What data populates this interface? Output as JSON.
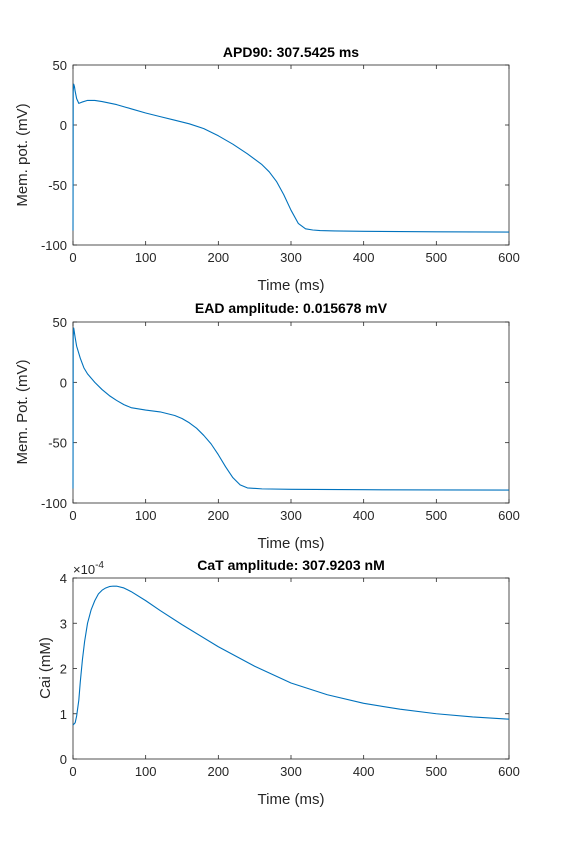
{
  "chart_data": [
    {
      "type": "line",
      "title": "APD90: 307.5425 ms",
      "xlabel": "Time (ms)",
      "ylabel": "Mem. pot. (mV)",
      "xlim": [
        0,
        600
      ],
      "ylim": [
        -100,
        50
      ],
      "xticks": [
        0,
        100,
        200,
        300,
        400,
        500,
        600
      ],
      "yticks": [
        -100,
        -50,
        0,
        50
      ],
      "xtick_labels": [
        "0",
        "100",
        "200",
        "300",
        "400",
        "500",
        "600"
      ],
      "ytick_labels": [
        "-100",
        "-50",
        "0",
        "50"
      ],
      "exponent_label": "",
      "exponent_power": "",
      "grid": false,
      "line_color": "#0072BD",
      "series": [
        {
          "x": [
            0,
            0.3,
            1,
            2,
            3,
            5,
            8,
            12,
            20,
            30,
            40,
            60,
            80,
            100,
            120,
            140,
            160,
            180,
            200,
            220,
            240,
            260,
            270,
            280,
            290,
            300,
            310,
            320,
            330,
            340,
            360,
            400,
            450,
            500,
            550,
            600
          ],
          "y": [
            -88,
            28,
            34,
            32,
            28,
            22,
            18,
            19,
            20.5,
            20.5,
            19.5,
            17,
            13.5,
            10,
            7,
            4,
            1,
            -3,
            -9,
            -16,
            -24,
            -33,
            -39,
            -47,
            -58,
            -71,
            -82,
            -86.5,
            -87.5,
            -88,
            -88.3,
            -88.6,
            -88.8,
            -89,
            -89.1,
            -89.2
          ]
        }
      ]
    },
    {
      "type": "line",
      "title": "EAD amplitude: 0.015678 mV",
      "xlabel": "Time (ms)",
      "ylabel": "Mem. Pot. (mV)",
      "xlim": [
        0,
        600
      ],
      "ylim": [
        -100,
        50
      ],
      "xticks": [
        0,
        100,
        200,
        300,
        400,
        500,
        600
      ],
      "yticks": [
        -100,
        -50,
        0,
        50
      ],
      "xtick_labels": [
        "0",
        "100",
        "200",
        "300",
        "400",
        "500",
        "600"
      ],
      "ytick_labels": [
        "-100",
        "-50",
        "0",
        "50"
      ],
      "exponent_label": "",
      "exponent_power": "",
      "grid": false,
      "line_color": "#0072BD",
      "series": [
        {
          "x": [
            0,
            0.3,
            1,
            3,
            5,
            10,
            15,
            20,
            30,
            40,
            50,
            60,
            70,
            80,
            100,
            120,
            140,
            150,
            160,
            170,
            180,
            190,
            200,
            210,
            220,
            230,
            240,
            260,
            300,
            400,
            500,
            600
          ],
          "y": [
            -88,
            38,
            45,
            37,
            30,
            20,
            12,
            7,
            0,
            -6,
            -11,
            -15,
            -18.5,
            -21,
            -23,
            -24.5,
            -27.5,
            -30,
            -33.5,
            -38,
            -44,
            -51,
            -60,
            -70,
            -79,
            -85,
            -87.5,
            -88.3,
            -88.7,
            -89,
            -89.2,
            -89.3
          ]
        }
      ]
    },
    {
      "type": "line",
      "title": "CaT amplitude: 307.9203 nM",
      "xlabel": "Time (ms)",
      "ylabel": "Cai (mM)",
      "xlim": [
        0,
        600
      ],
      "ylim": [
        0,
        4
      ],
      "xticks": [
        0,
        100,
        200,
        300,
        400,
        500,
        600
      ],
      "yticks": [
        0,
        1,
        2,
        3,
        4
      ],
      "xtick_labels": [
        "0",
        "100",
        "200",
        "300",
        "400",
        "500",
        "600"
      ],
      "ytick_labels": [
        "0",
        "1",
        "2",
        "3",
        "4"
      ],
      "exponent_label": "×10",
      "exponent_power": "-4",
      "grid": false,
      "line_color": "#0072BD",
      "series": [
        {
          "x": [
            0,
            3,
            5,
            8,
            10,
            13,
            16,
            20,
            25,
            30,
            35,
            40,
            45,
            50,
            55,
            60,
            70,
            80,
            100,
            120,
            150,
            200,
            250,
            300,
            350,
            400,
            450,
            500,
            550,
            600
          ],
          "y": [
            0.75,
            0.8,
            0.95,
            1.3,
            1.7,
            2.2,
            2.6,
            3.0,
            3.3,
            3.5,
            3.65,
            3.73,
            3.78,
            3.81,
            3.82,
            3.82,
            3.78,
            3.7,
            3.5,
            3.28,
            2.97,
            2.48,
            2.05,
            1.68,
            1.42,
            1.23,
            1.1,
            1.0,
            0.93,
            0.88
          ]
        }
      ]
    }
  ]
}
